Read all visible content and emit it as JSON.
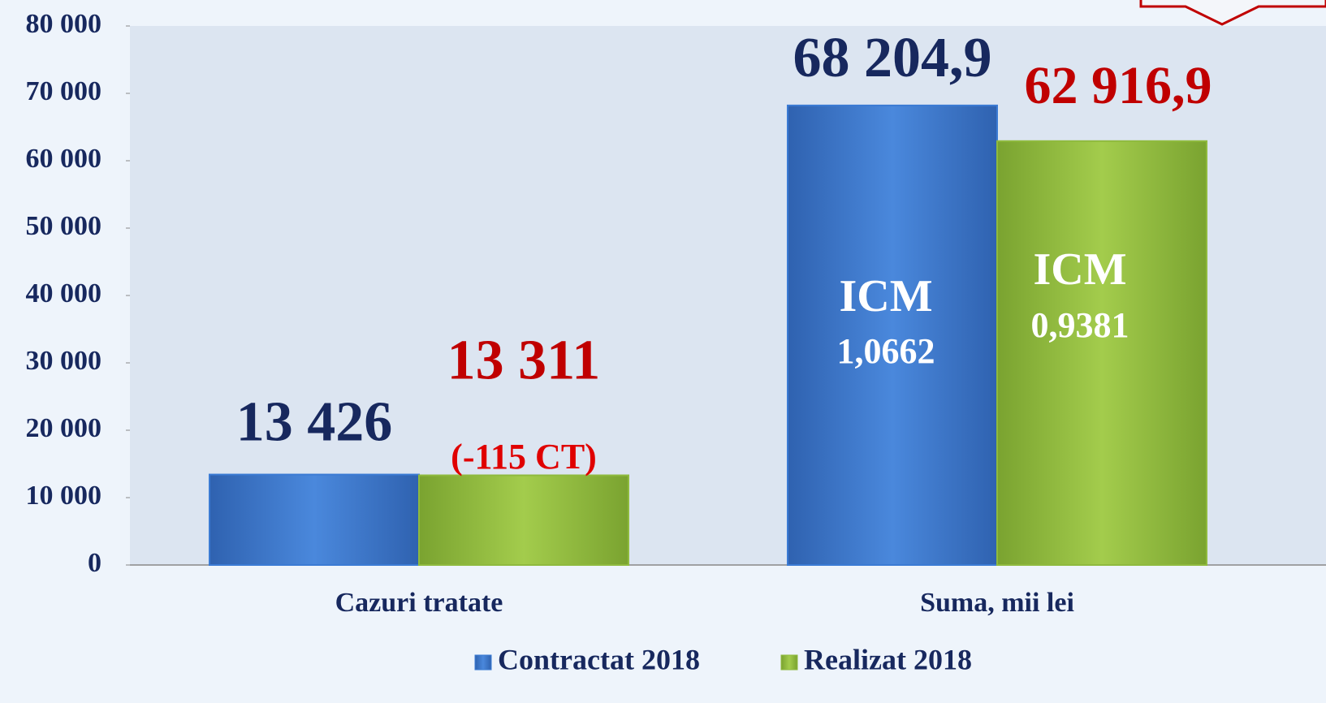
{
  "chart_data": {
    "type": "bar",
    "categories": [
      "Cazuri tratate",
      "Suma, mii lei"
    ],
    "series": [
      {
        "name": "Contractat 2018",
        "color": "#3b7bd4",
        "values": [
          13426,
          68204.9
        ],
        "value_labels": [
          "13 426",
          "68 204,9"
        ],
        "label_color": "#17285e"
      },
      {
        "name": "Realizat 2018",
        "color": "#8fba3e",
        "values": [
          13311,
          62916.9
        ],
        "value_labels": [
          "13 311",
          "62 916,9"
        ],
        "label_color": "#c00000"
      }
    ],
    "annotations": [
      "(-115 CT)",
      "ICM",
      "1,0662",
      "ICM",
      "0,9381"
    ],
    "ylim": [
      0,
      80000
    ],
    "yticks": [
      0,
      {
        "value": 10000,
        "label": "10 000"
      },
      {
        "value": 20000,
        "label": "20 000"
      },
      {
        "value": 30000,
        "label": "30 000"
      },
      {
        "value": 40000,
        "label": "40 000"
      },
      {
        "value": 50000,
        "label": "50 000"
      },
      {
        "value": 60000,
        "label": "60 000"
      },
      {
        "value": 70000,
        "label": "70 000"
      },
      {
        "value": 80000,
        "label": "80 000"
      }
    ],
    "legend": "bottom"
  }
}
